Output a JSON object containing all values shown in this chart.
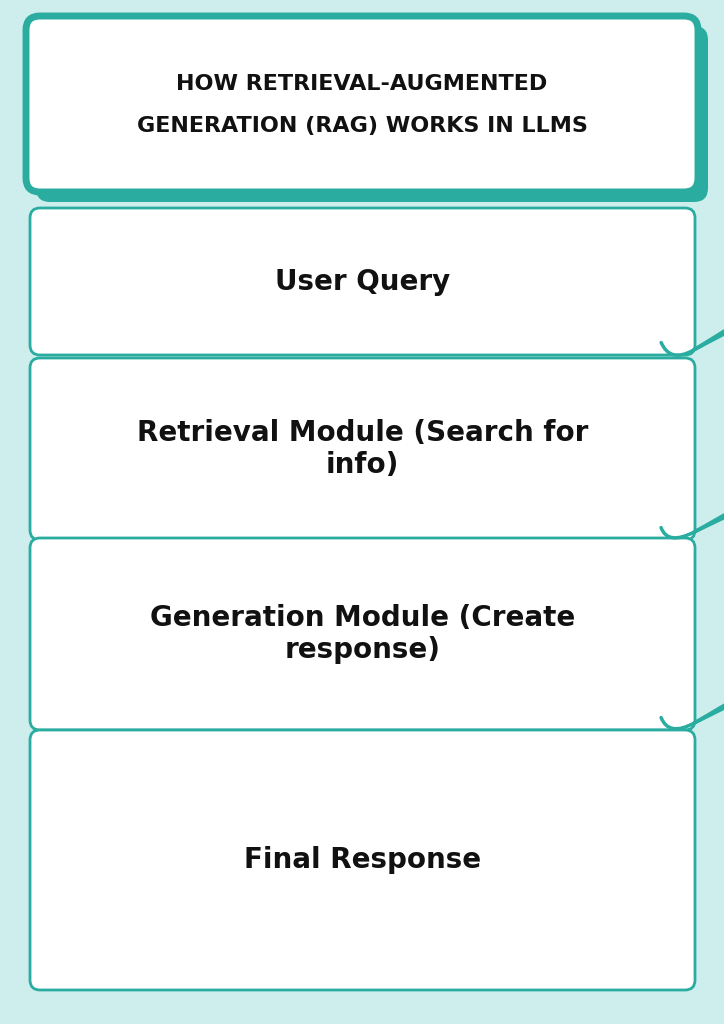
{
  "background_color": "#ceeeed",
  "title_text_line1": "HOW RETRIEVAL-AUGMENTED",
  "title_text_line2": "GENERATION (RAG) WORKS IN LLMS",
  "title_bg": "#ffffff",
  "title_border": "#2aada0",
  "title_shadow": "#2aada0",
  "box_bg": "#ffffff",
  "box_border": "#2aada0",
  "box_text_color": "#111111",
  "arrow_color": "#2aada0",
  "steps": [
    "User Query",
    "Retrieval Module (Search for\ninfo)",
    "Generation Module (Create\nresponse)",
    "Final Response"
  ],
  "step_font_sizes": [
    20,
    20,
    20,
    20
  ],
  "title_fontsize": 16
}
